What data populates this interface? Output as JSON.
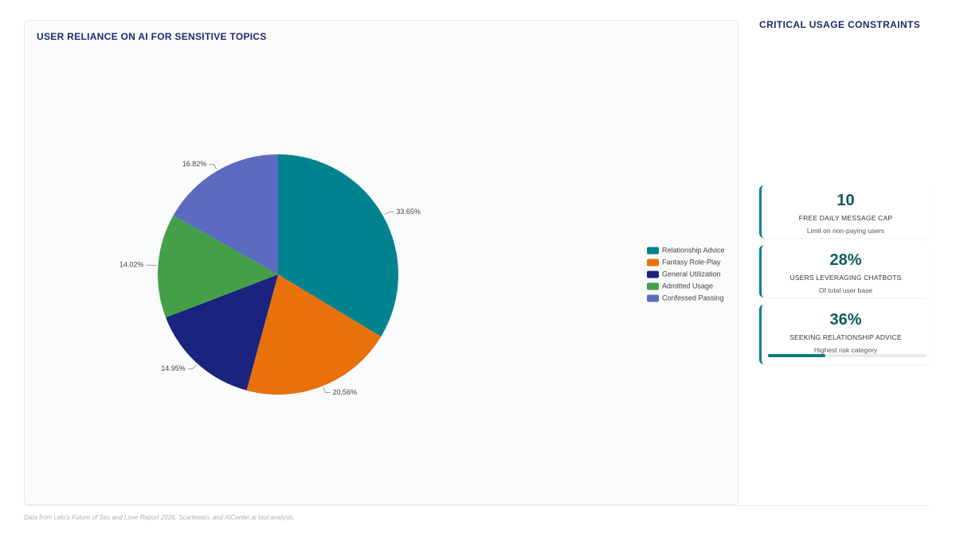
{
  "chart_data": {
    "type": "pie",
    "title": "USER RELIANCE ON AI FOR SENSITIVE TOPICS",
    "categories": [
      "Relationship Advice",
      "Fantasy Role-Play",
      "General Utilization",
      "Admitted Usage",
      "Confessed Passing"
    ],
    "values": [
      33.65,
      20.56,
      14.95,
      14.02,
      16.82
    ],
    "value_labels": [
      "33.65%",
      "20.56%",
      "14.95%",
      "14.02%",
      "16.82%"
    ],
    "colors": [
      "#00838f",
      "#e8710a",
      "#1a237e",
      "#43a047",
      "#5c6bc0"
    ],
    "legend": "right"
  },
  "sidebar": {
    "title": "CRITICAL USAGE CONSTRAINTS",
    "kpis": [
      {
        "value": 10,
        "label": "FREE DAILY MESSAGE CAP",
        "note": "Limit on non-paying users"
      },
      {
        "value": 28,
        "value_label": "28%",
        "label": "USERS LEVERAGING CHATBOTS",
        "note": "Of total user base"
      },
      {
        "value": 36,
        "value_label": "36%",
        "label": "SEEKING RELATIONSHIP ADVICE",
        "note": "Highest risk category"
      }
    ]
  },
  "footer": "Data from Lelo's Future of Sex and Love Report 2026, Scarleteen, and AICenter.ai tool analysis."
}
